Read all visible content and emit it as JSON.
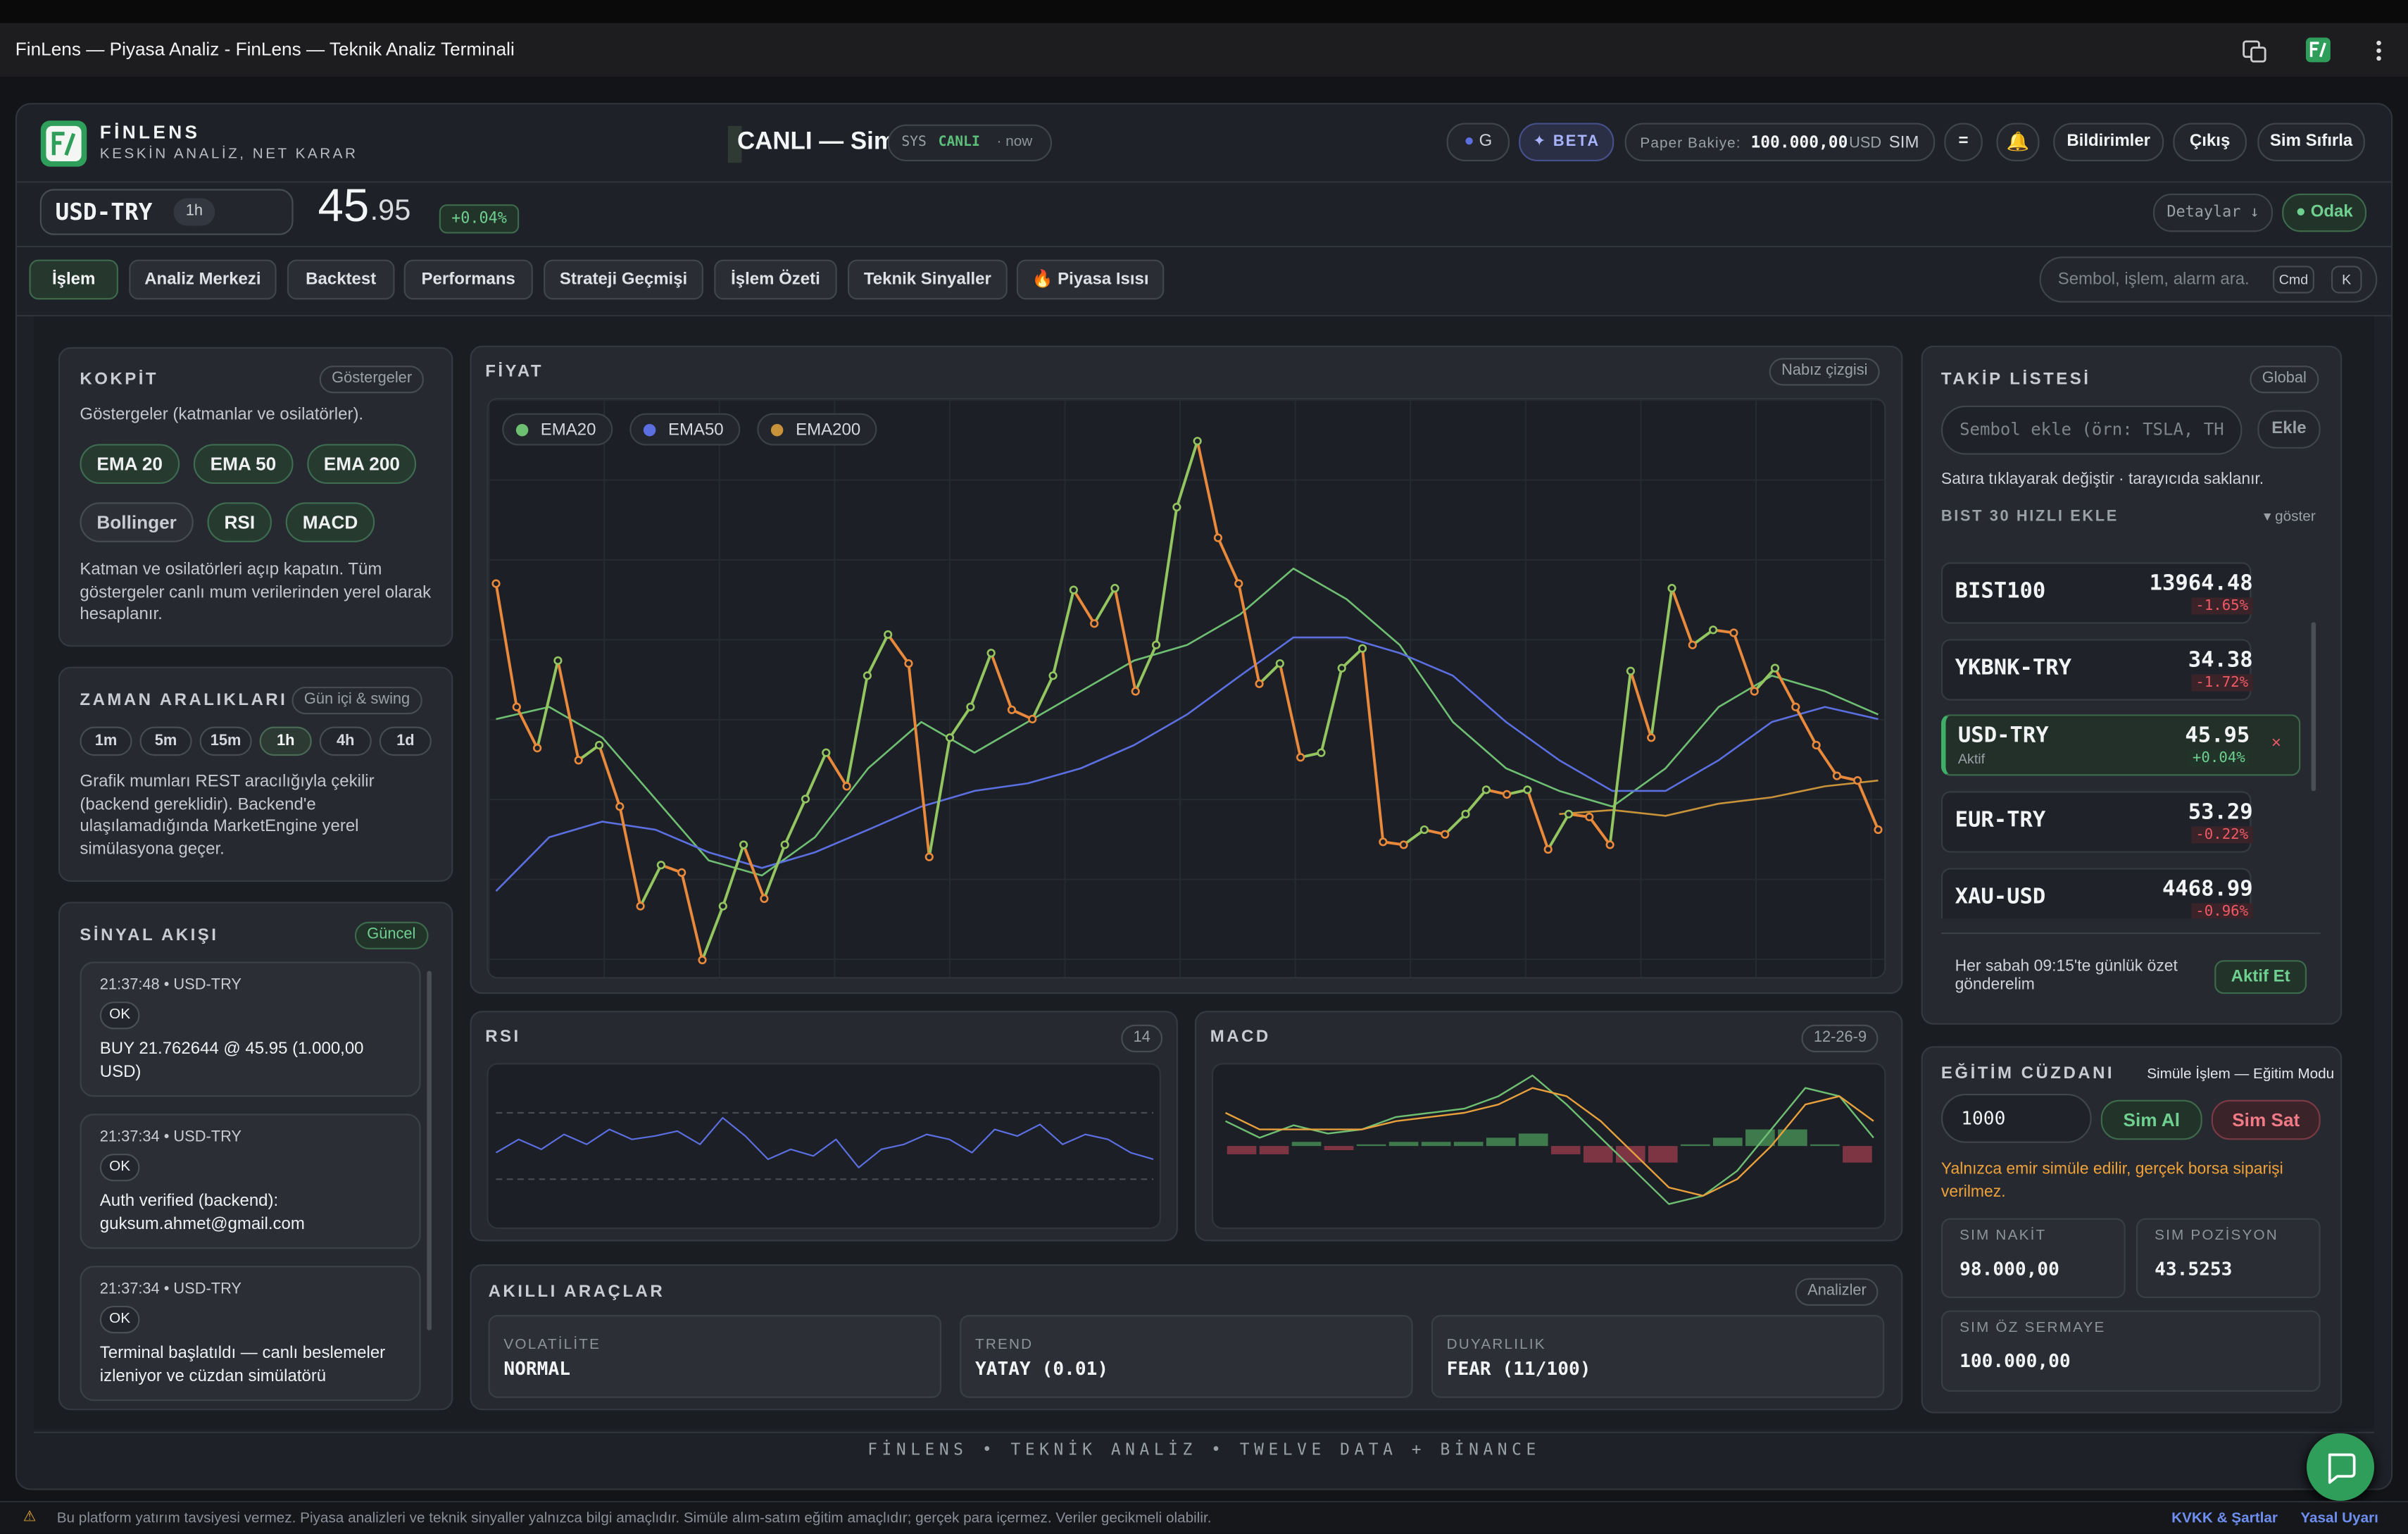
{
  "browser": {
    "title": "FinLens — Piyasa Analiz - FinLens — Teknik Analiz Terminali"
  },
  "header": {
    "brand": "FİNLENS",
    "tagline": "KESKİN ANALİZ, NET KARAR",
    "live": "CANLI — Sim",
    "sys_label": "SYS",
    "sys_status": "CANLI",
    "sys_time": "· now",
    "user": "G",
    "beta": "✦ BETA",
    "balance_label": "Paper Bakiye:",
    "balance": "100.000,00",
    "currency": "USD",
    "balance_mode": "SIM",
    "menu": "=",
    "bell": "🔔",
    "buttons": [
      "Bildirimler",
      "Çıkış",
      "Sim Sıfırla"
    ]
  },
  "ticker": {
    "symbol": "USD-TRY",
    "interval": "1h",
    "price_whole": "45",
    "price_fraction": ".95",
    "change": "+0.04%",
    "details": "Detaylar ↓",
    "focus": "● Odak"
  },
  "tabs": {
    "items": [
      "İşlem",
      "Analiz Merkezi",
      "Backtest",
      "Performans",
      "Strateji Geçmişi",
      "İşlem Özeti",
      "Teknik Sinyaller",
      "🔥 Piyasa Isısı"
    ],
    "active": 0
  },
  "search": {
    "placeholder": "Sembol, işlem, alarm ara.",
    "keys": [
      "Cmd",
      "K"
    ]
  },
  "cockpit": {
    "title": "KOKPİT",
    "badge": "Göstergeler",
    "description": "Göstergeler (katmanlar ve osilatörler).",
    "indicators": [
      "EMA 20",
      "EMA 50",
      "EMA 200",
      "Bollinger",
      "RSI",
      "MACD"
    ],
    "indicator_on": [
      true,
      true,
      true,
      false,
      true,
      true
    ],
    "note": "Katman ve osilatörleri açıp kapatın. Tüm göstergeler canlı mum verilerinden yerel olarak hesaplanır."
  },
  "timeframes": {
    "title": "ZAMAN ARALIKLARI",
    "badge": "Gün içi & swing",
    "items": [
      "1m",
      "5m",
      "15m",
      "1h",
      "4h",
      "1d"
    ],
    "active": 3,
    "note": "Grafik mumları REST aracılığıyla çekilir (backend gereklidir). Backend'e ulaşılamadığında MarketEngine yerel simülasyona geçer."
  },
  "signals": {
    "title": "SİNYAL AKIŞI",
    "badge": "Güncel",
    "items": [
      {
        "time": "21:37:48 • USD-TRY",
        "status": "OK",
        "text": "BUY 21.762644 @ 45.95 (1.000,00 USD)"
      },
      {
        "time": "21:37:34 • USD-TRY",
        "status": "OK",
        "text": "Auth verified (backend): guksum.ahmet@gmail.com"
      },
      {
        "time": "21:37:34 • USD-TRY",
        "status": "OK",
        "text": "Terminal başlatıldı — canlı beslemeler izleniyor ve cüzdan simülatörü"
      }
    ]
  },
  "chart_data": [
    {
      "type": "line",
      "title": "FİYAT",
      "badge": "Nabız çizgisi",
      "ylim": [
        0,
        100
      ],
      "color_up": "#93c560",
      "color_down": "#e8893c",
      "values": [
        68.2,
        46.9,
        39.8,
        54.9,
        37.7,
        40.3,
        29.7,
        12.5,
        19.6,
        18.3,
        3.2,
        12.5,
        23.1,
        13.8,
        23.1,
        31.0,
        39.0,
        33.2,
        52.3,
        59.4,
        54.4,
        21.0,
        41.6,
        46.9,
        56.2,
        46.4,
        44.8,
        52.3,
        67.1,
        61.3,
        67.4,
        49.6,
        57.6,
        81.4,
        92.8,
        76.1,
        68.2,
        50.9,
        54.4,
        38.2,
        39.0,
        53.6,
        57.0,
        23.6,
        23.1,
        25.7,
        24.9,
        28.4,
        32.6,
        31.8,
        32.6,
        22.3,
        28.4,
        27.9,
        23.1,
        53.1,
        41.6,
        67.4,
        57.6,
        60.2,
        59.7,
        49.6,
        53.6,
        46.9,
        40.3,
        35.0,
        34.2,
        25.7
      ],
      "series": [
        {
          "name": "EMA20",
          "color": "#6fbf73",
          "values": [
            44.8,
            46.9,
            41.6,
            31.0,
            20.4,
            17.8,
            24.4,
            36.3,
            44.3,
            39.0,
            44.3,
            49.6,
            54.9,
            57.6,
            62.9,
            70.8,
            65.5,
            57.6,
            44.3,
            36.3,
            32.4,
            29.7,
            36.3,
            46.9,
            52.3,
            49.6,
            45.6
          ]
        },
        {
          "name": "EMA50",
          "color": "#5b6fe0",
          "values": [
            15.1,
            24.4,
            27.1,
            25.7,
            21.8,
            19.1,
            21.8,
            25.7,
            29.7,
            32.4,
            33.7,
            36.3,
            40.3,
            45.6,
            52.3,
            58.9,
            58.9,
            56.2,
            52.3,
            44.3,
            37.7,
            32.4,
            32.4,
            37.7,
            44.3,
            46.9,
            44.8
          ]
        },
        {
          "name": "EMA200",
          "color": "#c8923a",
          "values": [
            null,
            null,
            null,
            null,
            null,
            null,
            null,
            null,
            null,
            null,
            null,
            null,
            null,
            null,
            null,
            null,
            null,
            null,
            null,
            null,
            28.4,
            29.1,
            28.1,
            30.2,
            31.3,
            33.2,
            34.2
          ]
        }
      ]
    },
    {
      "type": "line",
      "title": "RSI",
      "badge": "14",
      "ylim": [
        0,
        100
      ],
      "guides": [
        30,
        70
      ],
      "color": "#5b6fe0",
      "values": [
        46,
        54,
        48,
        57,
        51,
        60,
        54,
        56,
        59,
        51,
        67,
        56,
        42,
        48,
        44,
        54,
        37,
        48,
        51,
        57,
        54,
        46,
        60,
        56,
        63,
        51,
        57,
        54,
        46,
        42
      ]
    },
    {
      "type": "macd",
      "title": "MACD",
      "badge": "12-26-9",
      "ylim": [
        -1,
        1
      ],
      "macd_color": "#6fbf73",
      "signal_color": "#e8a03c",
      "hist_up": "#3e7a4c",
      "hist_down": "#7d3543",
      "macd": [
        0.3,
        0.1,
        0.25,
        0.15,
        0.2,
        0.35,
        0.4,
        0.45,
        0.6,
        0.85,
        0.5,
        0.1,
        -0.3,
        -0.7,
        -0.6,
        -0.3,
        0.2,
        0.7,
        0.6,
        0.1
      ],
      "signal": [
        0.4,
        0.2,
        0.2,
        0.2,
        0.2,
        0.3,
        0.35,
        0.4,
        0.5,
        0.7,
        0.6,
        0.3,
        -0.1,
        -0.5,
        -0.6,
        -0.4,
        0.0,
        0.5,
        0.6,
        0.3
      ],
      "histogram": [
        -0.1,
        -0.1,
        0.05,
        -0.05,
        0.02,
        0.05,
        0.05,
        0.05,
        0.1,
        0.15,
        -0.1,
        -0.2,
        -0.2,
        -0.2,
        0.02,
        0.1,
        0.2,
        0.2,
        0.02,
        -0.2
      ]
    }
  ],
  "smart_tools": {
    "title": "AKILLI ARAÇLAR",
    "badge": "Analizler",
    "cards": [
      {
        "label": "VOLATİLİTE",
        "value": "NORMAL"
      },
      {
        "label": "TREND",
        "value": "YATAY (0.01)"
      },
      {
        "label": "DUYARLILIK",
        "value": "FEAR (11/100)"
      }
    ]
  },
  "watchlist": {
    "title": "TAKİP LİSTESİ",
    "badge": "Global",
    "placeholder": "Sembol ekle (örn: TSLA, TH",
    "add": "Ekle",
    "hint": "Satıra tıklayarak değiştir · tarayıcıda saklanır.",
    "quick": "BIST 30 HIZLI EKLE",
    "toggle": "▾ göster",
    "items": [
      {
        "symbol": "BIST100",
        "price": "13964.48",
        "change": "-1.65%"
      },
      {
        "symbol": "YKBNK-TRY",
        "price": "34.38",
        "change": "-1.72%"
      },
      {
        "symbol": "USD-TRY",
        "price": "45.95",
        "change": "+0.04%",
        "tag": "Aktif",
        "remove": "×"
      },
      {
        "symbol": "EUR-TRY",
        "price": "53.29",
        "change": "-0.22%"
      },
      {
        "symbol": "XAU-USD",
        "price": "4468.99",
        "change": "-0.96%"
      }
    ],
    "daily_note": "Her sabah 09:15'te günlük özet gönderelim",
    "daily_button": "Aktif Et"
  },
  "wallet": {
    "title": "EĞİTİM CÜZDANI",
    "mode": "Simüle İşlem — Eğitim Modu",
    "amount": "1000",
    "buy": "Sim Al",
    "sell": "Sim Sat",
    "warning": "Yalnızca emir simüle edilir, gerçek borsa siparişi verilmez.",
    "stats": [
      {
        "label": "SIM NAKİT",
        "value": "98.000,00"
      },
      {
        "label": "SIM POZİSYON",
        "value": "43.5253"
      },
      {
        "label": "SIM ÖZ SERMAYE",
        "value": "100.000,00"
      }
    ]
  },
  "footer": {
    "brand": "FİNLENS • TEKNİK ANALİZ • TWELVE DATA + BİNANCE",
    "disclaimer_icon": "⚠",
    "disclaimer": "Bu platform yatırım tavsiyesi vermez. Piyasa analizleri ve teknik sinyaller yalnızca bilgi amaçlıdır. Simüle alım-satım eğitim amaçlıdır; gerçek para içermez. Veriler gecikmeli olabilir.",
    "links": [
      "KVKK & Şartlar",
      "Yasal Uyarı"
    ]
  }
}
